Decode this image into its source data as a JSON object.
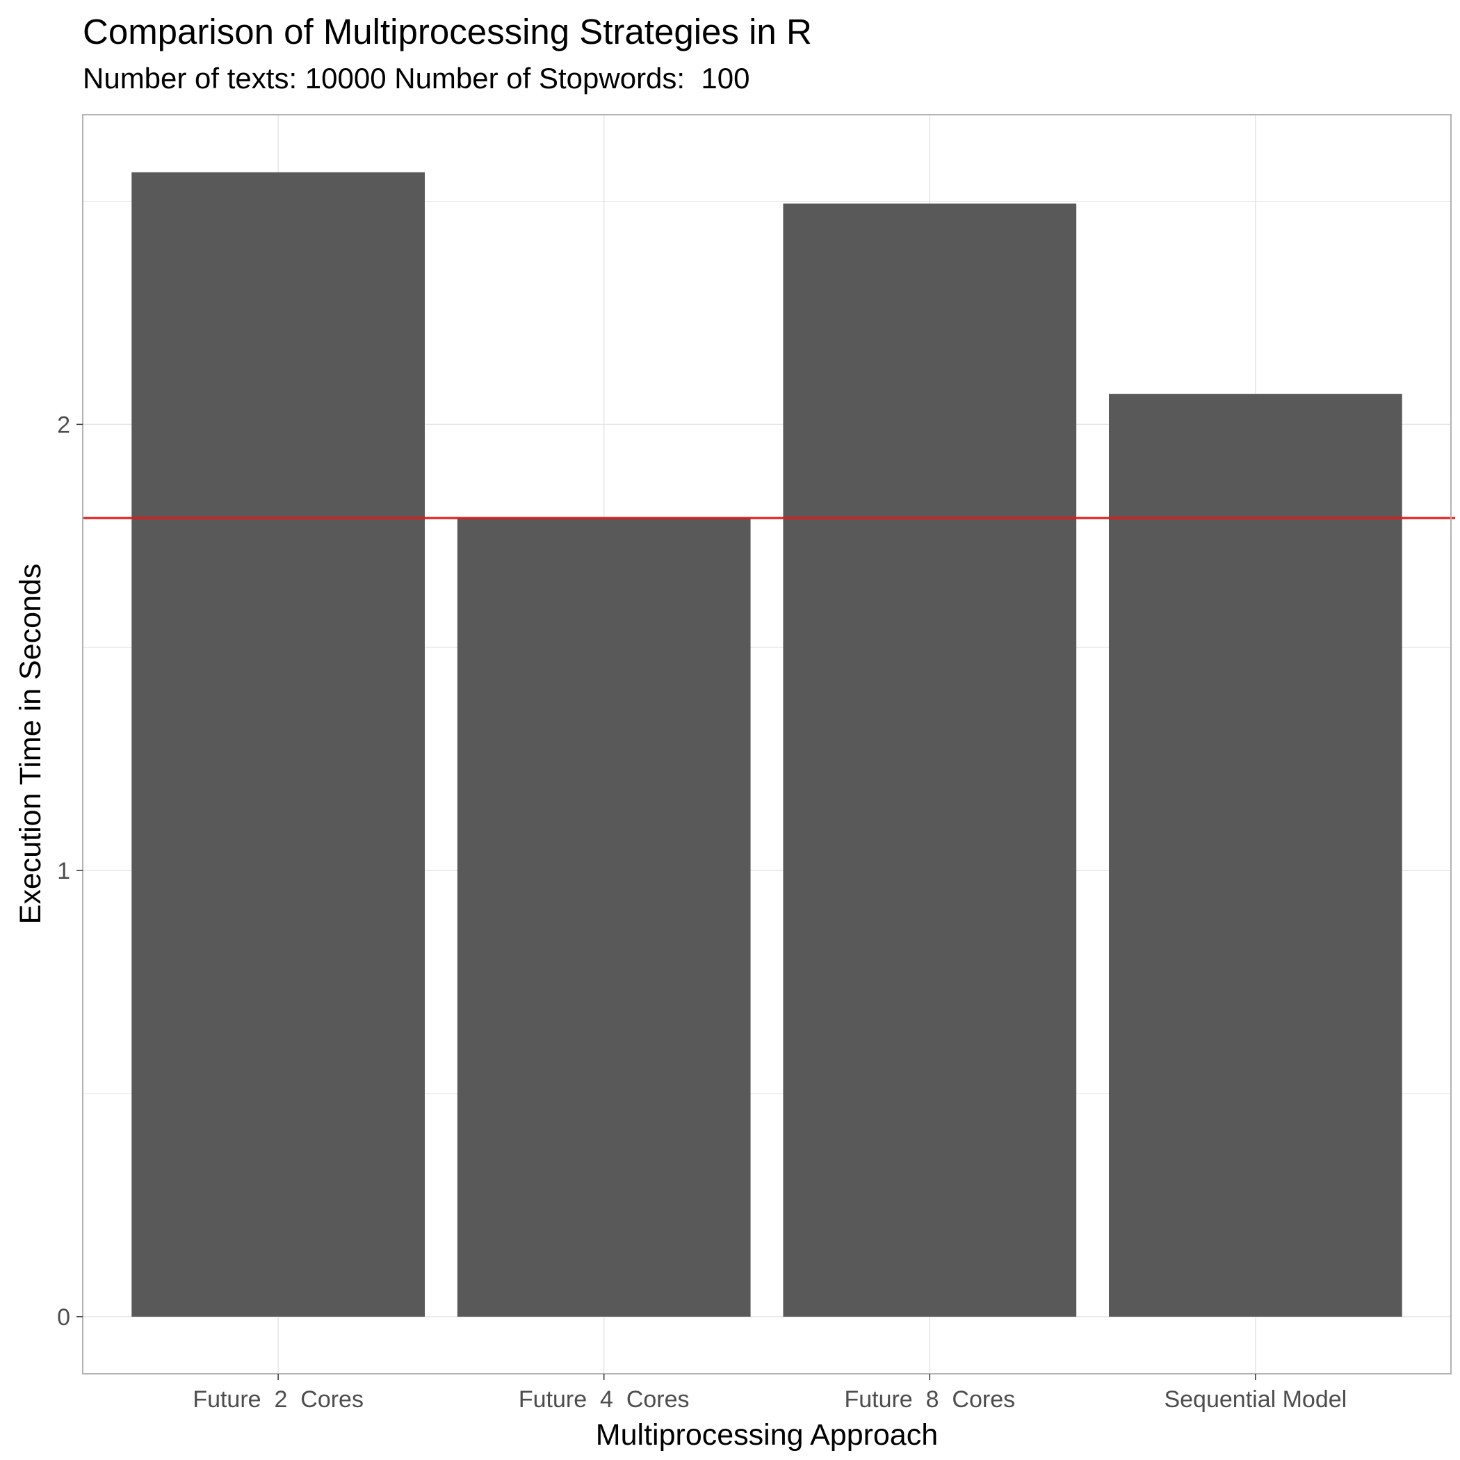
{
  "chart_data": {
    "type": "bar",
    "title": "Comparison of Multiprocessing Strategies in R",
    "subtitle": "Number of texts: 10000 Number of Stopwords:  100",
    "xlabel": "Multiprocessing Approach",
    "ylabel": "Execution Time in Seconds",
    "categories": [
      "Future  2  Cores",
      "Future  4  Cores",
      "Future  8  Cores",
      "Sequential Model"
    ],
    "values": [
      2.565,
      1.79,
      2.495,
      2.068
    ],
    "reference_line": {
      "y": 1.79,
      "color": "#e41a1c"
    },
    "ylim": [
      -0.128,
      2.694
    ],
    "y_ticks": [
      0,
      1,
      2
    ],
    "y_tick_labels": [
      "0",
      "1",
      "2"
    ],
    "grid": true,
    "legend": "none",
    "colors": {
      "bar": "#595959",
      "grid": "#e5e5e5",
      "panel_border": "#b3b3b3",
      "reference_line": "#e41a1c"
    }
  }
}
